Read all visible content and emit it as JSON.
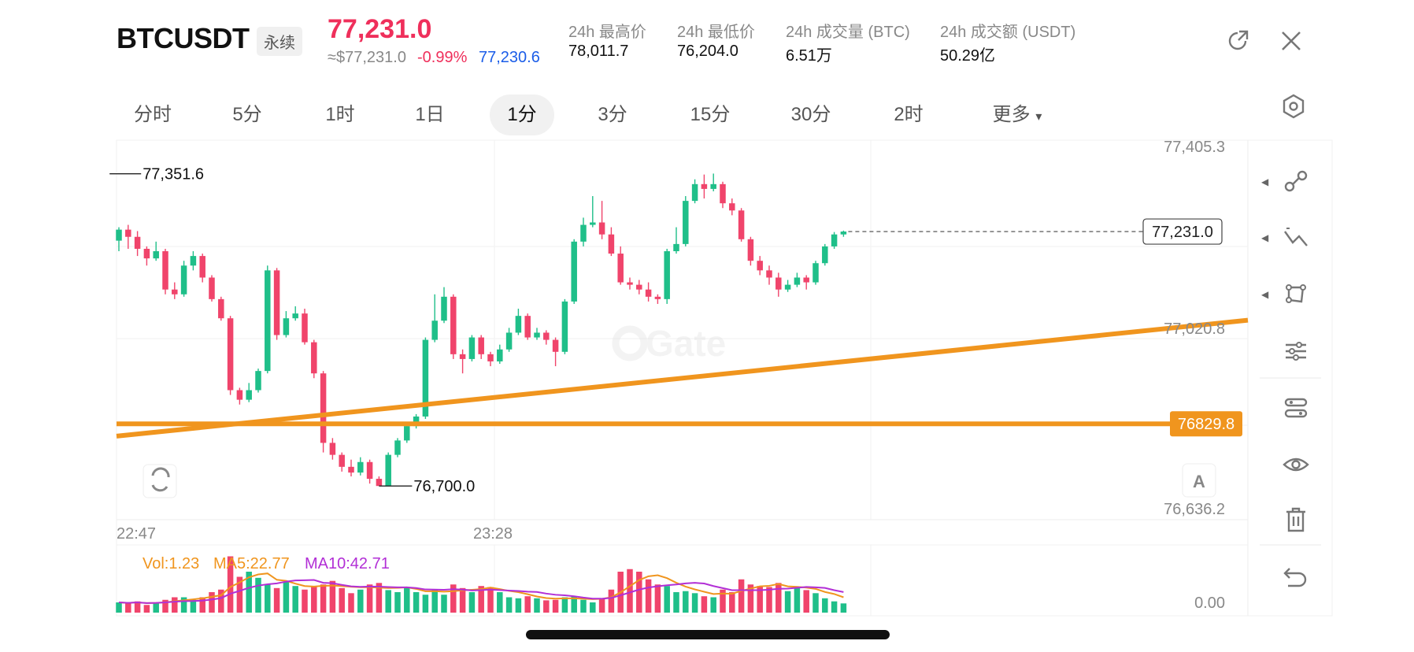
{
  "header": {
    "symbol": "BTCUSDT",
    "contract_type": "永续",
    "last_price": "77,231.0",
    "approx_usd": "≈$77,231.0",
    "change_pct": "-0.99%",
    "mark_price": "77,230.6",
    "stats": [
      {
        "label": "24h 最高价",
        "value": "78,011.7"
      },
      {
        "label": "24h 最低价",
        "value": "76,204.0"
      },
      {
        "label": "24h 成交量 (BTC)",
        "value": "6.51万"
      },
      {
        "label": "24h 成交额 (USDT)",
        "value": "50.29亿"
      }
    ]
  },
  "timeframes": [
    "分时",
    "5分",
    "1时",
    "1日",
    "1分",
    "3分",
    "15分",
    "30分",
    "2时",
    "更多"
  ],
  "active_timeframe": "1分",
  "more_caret": "▾",
  "icons": [
    "external-link-icon",
    "close-icon",
    "chart-settings-icon",
    "line-tool-icon",
    "fibonacci-tool-icon",
    "shape-tool-icon",
    "indicator-settings-icon",
    "indicator-template-icon",
    "eye-icon",
    "trash-icon",
    "undo-icon",
    "watermark-logo-icon",
    "sync-icon"
  ],
  "colors": {
    "up": "#1fbf89",
    "down": "#f0446b",
    "accent_orange": "#f0951e",
    "mark_blue": "#1b5de8",
    "ma5": "#f0951e",
    "ma10": "#b22fd6"
  },
  "chart_data": {
    "type": "candlestick",
    "watermark": "Gate",
    "price_axis_labels": [
      "77,405.3",
      "77,020.8",
      "76,829.8",
      "76,636.2"
    ],
    "time_labels": [
      "22:47",
      "23:28"
    ],
    "ylim": [
      76636.2,
      77405.3
    ],
    "last_price_label": "77,231.0",
    "high_marker": {
      "label": "77,351.6",
      "value": 77351.6
    },
    "low_marker": {
      "label": "76,700.0",
      "value": 76700.0
    },
    "horizontal_line": {
      "label": "76829.8",
      "value": 76829.8
    },
    "trend_line": {
      "from": 76804,
      "to": 77046
    },
    "chart_button": "A",
    "candles": [
      [
        77212,
        77235,
        77240,
        77190
      ],
      [
        77235,
        77220,
        77245,
        77195
      ],
      [
        77220,
        77195,
        77232,
        77180
      ],
      [
        77195,
        77175,
        77200,
        77160
      ],
      [
        77175,
        77190,
        77210,
        77170
      ],
      [
        77190,
        77110,
        77195,
        77100
      ],
      [
        77110,
        77100,
        77125,
        77090
      ],
      [
        77100,
        77160,
        77170,
        77095
      ],
      [
        77160,
        77180,
        77190,
        77150
      ],
      [
        77180,
        77135,
        77185,
        77125
      ],
      [
        77135,
        77090,
        77140,
        77085
      ],
      [
        77090,
        77050,
        77095,
        77045
      ],
      [
        77050,
        76900,
        77055,
        76890
      ],
      [
        76900,
        76880,
        76905,
        76870
      ],
      [
        76880,
        76900,
        76915,
        76875
      ],
      [
        76900,
        76940,
        76945,
        76895
      ],
      [
        76940,
        77150,
        77160,
        76935
      ],
      [
        77150,
        77015,
        77155,
        77005
      ],
      [
        77015,
        77050,
        77065,
        77010
      ],
      [
        77050,
        77060,
        77075,
        77045
      ],
      [
        77060,
        77000,
        77070,
        76995
      ],
      [
        77000,
        76935,
        77005,
        76925
      ],
      [
        76935,
        76790,
        76940,
        76770
      ],
      [
        76790,
        76765,
        76800,
        76755
      ],
      [
        76765,
        76740,
        76770,
        76730
      ],
      [
        76740,
        76728,
        76755,
        76720
      ],
      [
        76728,
        76750,
        76760,
        76722
      ],
      [
        76750,
        76715,
        76755,
        76705
      ],
      [
        76715,
        76700,
        76720,
        76700
      ],
      [
        76700,
        76765,
        76770,
        76702
      ],
      [
        76765,
        76795,
        76800,
        76760
      ],
      [
        76795,
        76825,
        76830,
        76790
      ],
      [
        76825,
        76845,
        76850,
        76820
      ],
      [
        76845,
        77005,
        77010,
        76840
      ],
      [
        77005,
        77045,
        77100,
        77000
      ],
      [
        77045,
        77095,
        77115,
        77040
      ],
      [
        77095,
        76975,
        77100,
        76965
      ],
      [
        76975,
        76965,
        76985,
        76935
      ],
      [
        76965,
        77010,
        77015,
        76960
      ],
      [
        77010,
        76975,
        77015,
        76965
      ],
      [
        76975,
        76960,
        76980,
        76950
      ],
      [
        76960,
        76985,
        76995,
        76955
      ],
      [
        76985,
        77020,
        77030,
        76980
      ],
      [
        77020,
        77055,
        77070,
        77015
      ],
      [
        77055,
        77010,
        77060,
        77005
      ],
      [
        77010,
        77020,
        77030,
        77005
      ],
      [
        77020,
        77005,
        77025,
        76995
      ],
      [
        77005,
        76980,
        77010,
        76950
      ],
      [
        76980,
        77085,
        77090,
        76975
      ],
      [
        77085,
        77210,
        77215,
        77080
      ],
      [
        77210,
        77245,
        77260,
        77200
      ],
      [
        77245,
        77250,
        77305,
        77240
      ],
      [
        77250,
        77225,
        77295,
        77215
      ],
      [
        77225,
        77185,
        77240,
        77180
      ],
      [
        77185,
        77125,
        77200,
        77120
      ],
      [
        77125,
        77120,
        77135,
        77110
      ],
      [
        77120,
        77110,
        77130,
        77100
      ],
      [
        77110,
        77095,
        77125,
        77085
      ],
      [
        77095,
        77090,
        77100,
        77080
      ],
      [
        77090,
        77190,
        77195,
        77080
      ],
      [
        77190,
        77205,
        77240,
        77185
      ],
      [
        77205,
        77295,
        77305,
        77200
      ],
      [
        77295,
        77330,
        77340,
        77290
      ],
      [
        77330,
        77320,
        77350,
        77300
      ],
      [
        77320,
        77330,
        77352,
        77315
      ],
      [
        77330,
        77290,
        77335,
        77280
      ],
      [
        77290,
        77275,
        77300,
        77265
      ],
      [
        77275,
        77215,
        77280,
        77210
      ],
      [
        77215,
        77170,
        77220,
        77160
      ],
      [
        77170,
        77150,
        77180,
        77140
      ],
      [
        77150,
        77135,
        77160,
        77120
      ],
      [
        77135,
        77110,
        77145,
        77095
      ],
      [
        77110,
        77120,
        77130,
        77105
      ],
      [
        77120,
        77135,
        77145,
        77115
      ],
      [
        77135,
        77125,
        77140,
        77110
      ],
      [
        77125,
        77165,
        77170,
        77120
      ],
      [
        77165,
        77200,
        77205,
        77160
      ],
      [
        77200,
        77225,
        77230,
        77195
      ],
      [
        77225,
        77231,
        77233,
        77220
      ]
    ],
    "volume": {
      "vol_label": "Vol:1.23",
      "ma5_label": "MA5:22.77",
      "ma10_label": "MA10:42.71",
      "axis_label": "0.00",
      "ylim": [
        0,
        120
      ],
      "bars": [
        20,
        18,
        22,
        15,
        20,
        25,
        30,
        30,
        25,
        30,
        40,
        45,
        110,
        70,
        80,
        68,
        55,
        48,
        60,
        52,
        45,
        50,
        55,
        62,
        48,
        38,
        45,
        55,
        58,
        44,
        40,
        50,
        40,
        35,
        45,
        35,
        55,
        48,
        40,
        52,
        50,
        40,
        30,
        28,
        32,
        28,
        24,
        25,
        30,
        32,
        25,
        20,
        28,
        45,
        80,
        85,
        80,
        65,
        55,
        52,
        40,
        42,
        38,
        32,
        30,
        45,
        40,
        65,
        55,
        52,
        50,
        58,
        42,
        50,
        44,
        38,
        28,
        22,
        18
      ]
    }
  }
}
